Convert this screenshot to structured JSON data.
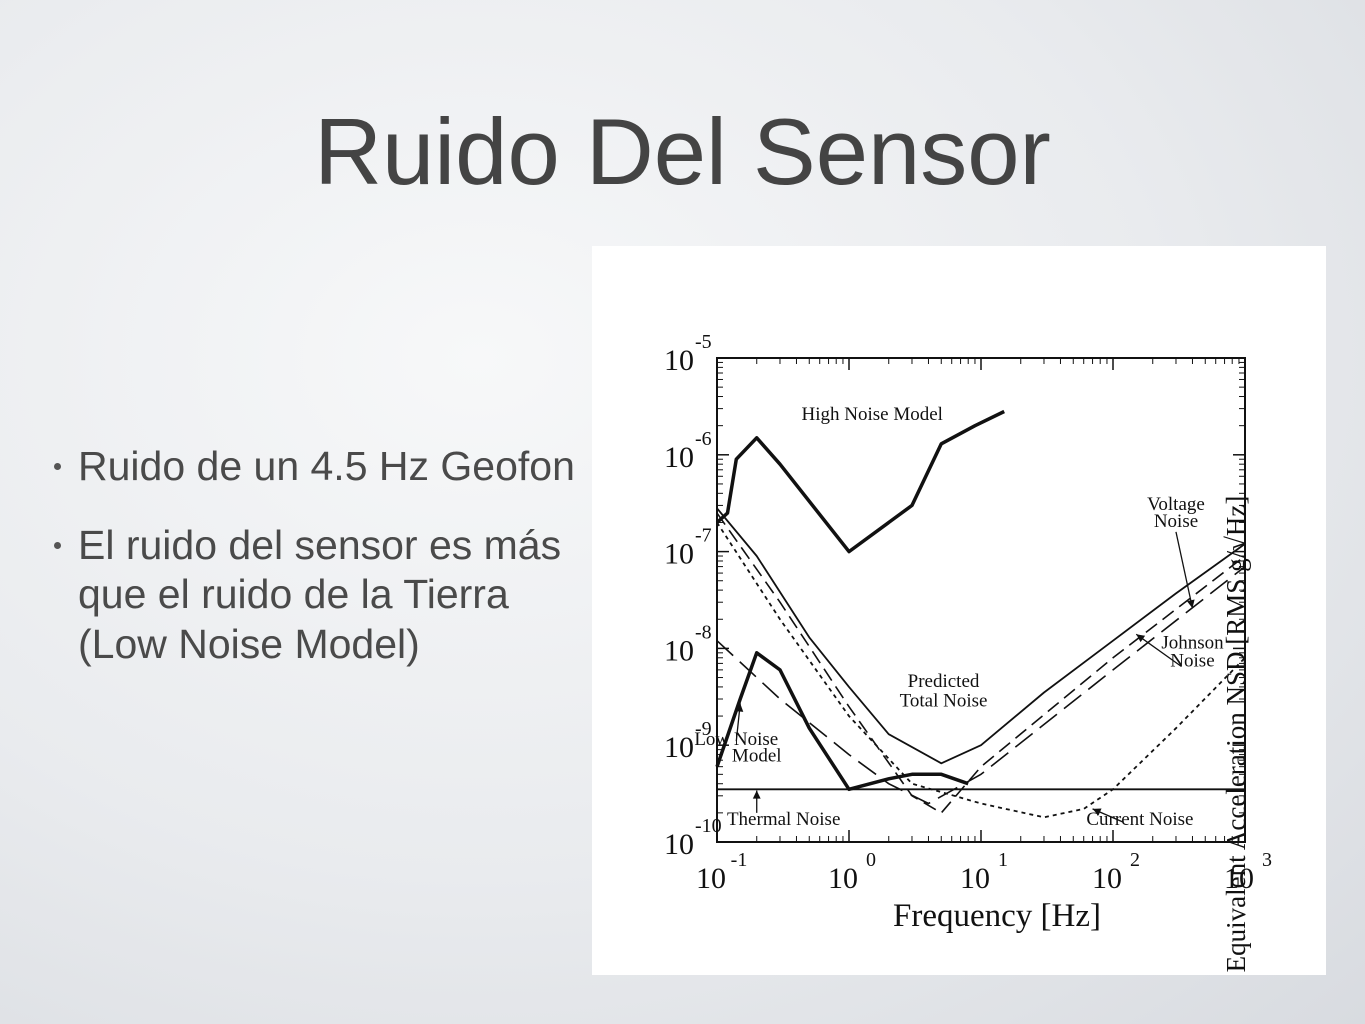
{
  "slide": {
    "title": "Ruido Del Sensor",
    "bullets": [
      "Ruido de un 4.5 Hz Geofon",
      "El ruido del sensor es más que el ruido de la Tierra (Low Noise Model)"
    ]
  },
  "chart_data": {
    "type": "line",
    "xlabel": "Frequency [Hz]",
    "ylabel": "Equivalent Acceleration NSD [RMS g/√Hz]",
    "xscale": "log",
    "yscale": "log",
    "xlim": [
      0.1,
      1000
    ],
    "ylim": [
      1e-10,
      1e-05
    ],
    "x_ticks": [
      {
        "value": 0.1,
        "base": "10",
        "exp": "-1"
      },
      {
        "value": 1,
        "base": "10",
        "exp": "0"
      },
      {
        "value": 10,
        "base": "10",
        "exp": "1"
      },
      {
        "value": 100,
        "base": "10",
        "exp": "2"
      },
      {
        "value": 1000,
        "base": "10",
        "exp": "3"
      }
    ],
    "y_ticks": [
      {
        "value": 1e-10,
        "base": "10",
        "exp": "-10"
      },
      {
        "value": 1e-09,
        "base": "10",
        "exp": "-9"
      },
      {
        "value": 1e-08,
        "base": "10",
        "exp": "-8"
      },
      {
        "value": 1e-07,
        "base": "10",
        "exp": "-7"
      },
      {
        "value": 1e-06,
        "base": "10",
        "exp": "-6"
      },
      {
        "value": 1e-05,
        "base": "10",
        "exp": "-5"
      }
    ],
    "series": [
      {
        "name": "High Noise Model",
        "style": "bold",
        "x": [
          0.1,
          0.12,
          0.14,
          0.2,
          0.3,
          1.0,
          3.0,
          5.0,
          9.0,
          15.0
        ],
        "y": [
          2e-07,
          2.5e-07,
          9e-07,
          1.5e-06,
          8e-07,
          1e-07,
          3e-07,
          1.3e-06,
          2e-06,
          2.8e-06
        ]
      },
      {
        "name": "Low Noise Model",
        "style": "bold",
        "x": [
          0.1,
          0.15,
          0.2,
          0.3,
          0.5,
          1.0,
          2.0,
          3.0,
          5.0,
          8.0
        ],
        "y": [
          6e-10,
          3e-09,
          9e-09,
          6e-09,
          1.5e-09,
          3.5e-10,
          4.5e-10,
          5e-10,
          5e-10,
          4e-10
        ]
      },
      {
        "name": "Predicted Total Noise",
        "style": "solid",
        "x": [
          0.1,
          0.2,
          0.5,
          1.0,
          2.0,
          5.0,
          10.0,
          30.0,
          100.0,
          300.0,
          1000.0
        ],
        "y": [
          2.8e-07,
          9e-08,
          1.3e-08,
          4e-09,
          1.3e-09,
          6.5e-10,
          1e-09,
          3.5e-09,
          1.2e-08,
          3.7e-08,
          1.2e-07
        ]
      },
      {
        "name": "Voltage Noise",
        "style": "dashed",
        "x": [
          0.1,
          0.3,
          1.0,
          3.0,
          5.0,
          10.0,
          100.0,
          1000.0
        ],
        "y": [
          2.5e-07,
          3e-08,
          2.5e-09,
          3e-10,
          2e-10,
          6e-10,
          8e-09,
          9e-08
        ]
      },
      {
        "name": "Johnson Noise",
        "style": "longdash",
        "x": [
          0.1,
          0.3,
          1.0,
          2.0,
          4.0,
          10.0,
          100.0,
          1000.0
        ],
        "y": [
          1.2e-08,
          3e-09,
          8e-10,
          4e-10,
          2.5e-10,
          5e-10,
          6e-09,
          7e-08
        ]
      },
      {
        "name": "Current Noise",
        "style": "dotted",
        "x": [
          0.1,
          0.3,
          1.0,
          3.0,
          10.0,
          30.0,
          60.0,
          100.0,
          300.0,
          1000.0
        ],
        "y": [
          2e-07,
          2e-08,
          2e-09,
          4e-10,
          2.5e-10,
          1.8e-10,
          2.2e-10,
          3.5e-10,
          1.5e-09,
          8e-09
        ]
      },
      {
        "name": "Thermal Noise",
        "style": "solid",
        "x": [
          0.1,
          1000.0
        ],
        "y": [
          3.5e-10,
          3.5e-10
        ]
      }
    ],
    "annotations": [
      {
        "text": "High Noise Model",
        "x": 1.5,
        "y": 2.3e-06
      },
      {
        "text": "Voltage",
        "x": 300,
        "y": 2.7e-07
      },
      {
        "text": "Noise",
        "x": 300,
        "y": 1.8e-07
      },
      {
        "text": "Johnson",
        "x": 400,
        "y": 1e-08
      },
      {
        "text": "Noise",
        "x": 400,
        "y": 6.5e-09
      },
      {
        "text": "Predicted",
        "x": 5.2,
        "y": 4e-09
      },
      {
        "text": "Total Noise",
        "x": 5.2,
        "y": 2.5e-09
      },
      {
        "text": "Low Noise",
        "x": 0.14,
        "y": 1e-09
      },
      {
        "text": "Model",
        "x": 0.2,
        "y": 6.8e-10
      },
      {
        "text": "Thermal Noise",
        "x": 0.32,
        "y": 1.5e-10
      },
      {
        "text": "Current Noise",
        "x": 160,
        "y": 1.5e-10
      }
    ],
    "grid": false
  }
}
